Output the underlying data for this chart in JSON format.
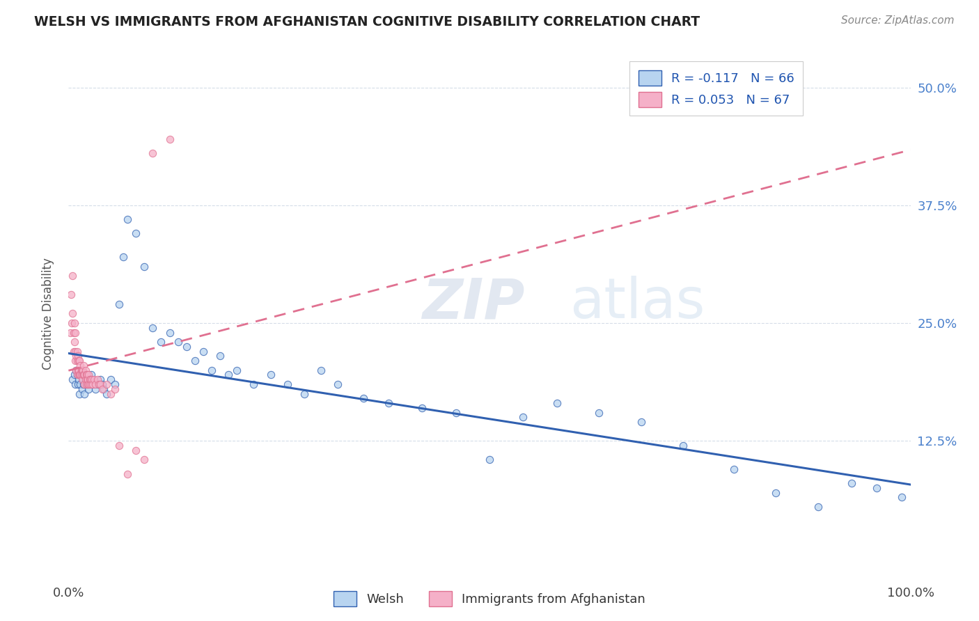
{
  "title": "WELSH VS IMMIGRANTS FROM AFGHANISTAN COGNITIVE DISABILITY CORRELATION CHART",
  "source": "Source: ZipAtlas.com",
  "ylabel": "Cognitive Disability",
  "watermark": "ZIPatlas",
  "legend_welsh": "Welsh",
  "legend_afghan": "Immigrants from Afghanistan",
  "welsh_R": -0.117,
  "welsh_N": 66,
  "afghan_R": 0.053,
  "afghan_N": 67,
  "welsh_color": "#b8d4f0",
  "afghan_color": "#f5b0c8",
  "welsh_line_color": "#3060b0",
  "afghan_line_color": "#e07090",
  "background_color": "#ffffff",
  "grid_color": "#d5dde8",
  "xlim": [
    0.0,
    1.0
  ],
  "ylim": [
    -0.02,
    0.54
  ],
  "xtick_labels": [
    "0.0%",
    "100.0%"
  ],
  "ytick_labels": [
    "12.5%",
    "25.0%",
    "37.5%",
    "50.0%"
  ],
  "ytick_values": [
    0.125,
    0.25,
    0.375,
    0.5
  ],
  "welsh_x": [
    0.005,
    0.007,
    0.008,
    0.009,
    0.01,
    0.011,
    0.012,
    0.013,
    0.014,
    0.015,
    0.016,
    0.017,
    0.018,
    0.019,
    0.02,
    0.022,
    0.024,
    0.025,
    0.027,
    0.03,
    0.032,
    0.035,
    0.038,
    0.04,
    0.042,
    0.045,
    0.05,
    0.055,
    0.06,
    0.065,
    0.07,
    0.08,
    0.09,
    0.1,
    0.11,
    0.12,
    0.13,
    0.14,
    0.15,
    0.16,
    0.17,
    0.18,
    0.19,
    0.2,
    0.22,
    0.24,
    0.26,
    0.28,
    0.3,
    0.32,
    0.35,
    0.38,
    0.42,
    0.46,
    0.5,
    0.54,
    0.58,
    0.63,
    0.68,
    0.73,
    0.79,
    0.84,
    0.89,
    0.93,
    0.96,
    0.99
  ],
  "welsh_y": [
    0.19,
    0.195,
    0.185,
    0.2,
    0.195,
    0.185,
    0.19,
    0.175,
    0.185,
    0.195,
    0.18,
    0.19,
    0.185,
    0.175,
    0.195,
    0.185,
    0.18,
    0.19,
    0.195,
    0.185,
    0.18,
    0.185,
    0.19,
    0.185,
    0.18,
    0.175,
    0.19,
    0.185,
    0.27,
    0.32,
    0.36,
    0.345,
    0.31,
    0.245,
    0.23,
    0.24,
    0.23,
    0.225,
    0.21,
    0.22,
    0.2,
    0.215,
    0.195,
    0.2,
    0.185,
    0.195,
    0.185,
    0.175,
    0.2,
    0.185,
    0.17,
    0.165,
    0.16,
    0.155,
    0.105,
    0.15,
    0.165,
    0.155,
    0.145,
    0.12,
    0.095,
    0.07,
    0.055,
    0.08,
    0.075,
    0.065
  ],
  "afghan_x": [
    0.002,
    0.003,
    0.004,
    0.005,
    0.005,
    0.006,
    0.006,
    0.007,
    0.007,
    0.008,
    0.008,
    0.008,
    0.009,
    0.009,
    0.01,
    0.01,
    0.01,
    0.011,
    0.011,
    0.012,
    0.012,
    0.012,
    0.013,
    0.013,
    0.014,
    0.014,
    0.015,
    0.015,
    0.016,
    0.016,
    0.017,
    0.017,
    0.018,
    0.018,
    0.019,
    0.019,
    0.02,
    0.02,
    0.021,
    0.021,
    0.022,
    0.022,
    0.023,
    0.023,
    0.024,
    0.024,
    0.025,
    0.025,
    0.026,
    0.027,
    0.028,
    0.029,
    0.03,
    0.032,
    0.034,
    0.036,
    0.038,
    0.04,
    0.045,
    0.05,
    0.055,
    0.06,
    0.07,
    0.08,
    0.09,
    0.1,
    0.12
  ],
  "afghan_y": [
    0.24,
    0.28,
    0.25,
    0.26,
    0.3,
    0.24,
    0.22,
    0.25,
    0.23,
    0.21,
    0.22,
    0.24,
    0.2,
    0.215,
    0.21,
    0.195,
    0.22,
    0.2,
    0.215,
    0.195,
    0.21,
    0.2,
    0.195,
    0.21,
    0.195,
    0.205,
    0.2,
    0.195,
    0.2,
    0.19,
    0.195,
    0.2,
    0.195,
    0.205,
    0.195,
    0.185,
    0.2,
    0.19,
    0.195,
    0.185,
    0.19,
    0.195,
    0.185,
    0.19,
    0.195,
    0.185,
    0.19,
    0.185,
    0.19,
    0.185,
    0.19,
    0.185,
    0.19,
    0.185,
    0.19,
    0.185,
    0.185,
    0.18,
    0.185,
    0.175,
    0.18,
    0.12,
    0.09,
    0.115,
    0.105,
    0.43,
    0.445
  ]
}
